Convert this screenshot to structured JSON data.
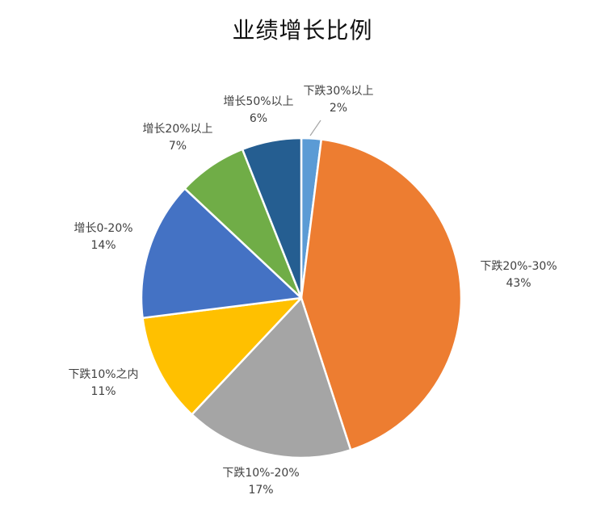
{
  "chart_data": {
    "type": "pie",
    "title": "业绩增长比例",
    "slices": [
      {
        "label": "下跌30%以上",
        "value": 2,
        "percent_label": "2%",
        "color": "#5B9BD5"
      },
      {
        "label": "下跌20%-30%",
        "value": 43,
        "percent_label": "43%",
        "color": "#ED7D31"
      },
      {
        "label": "下跌10%-20%",
        "value": 17,
        "percent_label": "17%",
        "color": "#A5A5A5"
      },
      {
        "label": "下跌10%之内",
        "value": 11,
        "percent_label": "11%",
        "color": "#FFC000"
      },
      {
        "label": "增长0-20%",
        "value": 14,
        "percent_label": "14%",
        "color": "#4472C4"
      },
      {
        "label": "增长20%以上",
        "value": 7,
        "percent_label": "7%",
        "color": "#70AD47"
      },
      {
        "label": "增长50%以上",
        "value": 6,
        "percent_label": "6%",
        "color": "#255E91"
      }
    ],
    "start_angle": "12 o'clock",
    "direction": "clockwise",
    "legend": "none"
  }
}
